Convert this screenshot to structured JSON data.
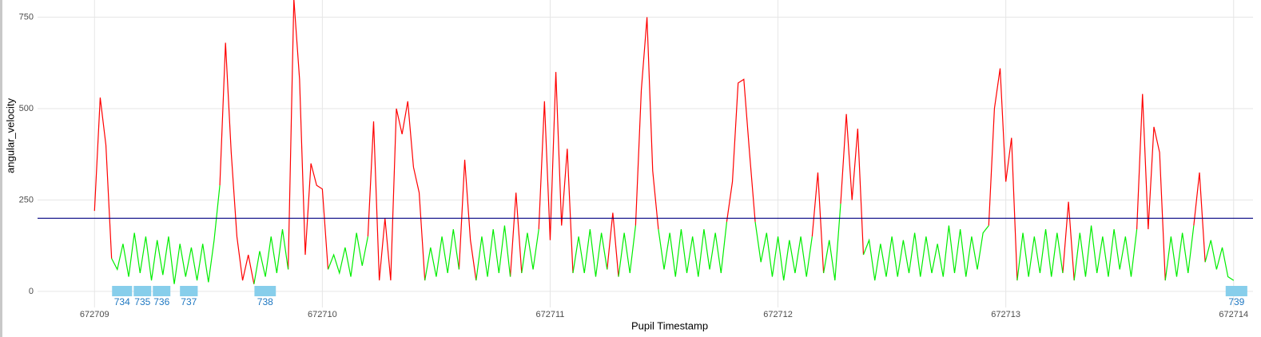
{
  "chart_data": {
    "type": "line",
    "x_label": "Pupil Timestamp",
    "y_label": "angular_velocity",
    "xlim": [
      672708.75,
      672714.085
    ],
    "ylim": [
      -44,
      797
    ],
    "xticks": [
      672709,
      672710,
      672711,
      672712,
      672713,
      672714
    ],
    "yticks": [
      0,
      250,
      500,
      750
    ],
    "grid": true,
    "threshold": {
      "value": 200,
      "color": "#000080"
    },
    "x": [
      672709,
      672709.025,
      672709.05,
      672709.075,
      672709.1,
      672709.125,
      672709.15,
      672709.175,
      672709.2,
      672709.225,
      672709.25,
      672709.275,
      672709.3,
      672709.325,
      672709.35,
      672709.375,
      672709.4,
      672709.425,
      672709.45,
      672709.475,
      672709.5,
      672709.525,
      672709.55,
      672709.575,
      672709.6,
      672709.625,
      672709.65,
      672709.675,
      672709.7,
      672709.725,
      672709.75,
      672709.775,
      672709.8,
      672709.825,
      672709.85,
      672709.875,
      672709.9,
      672709.925,
      672709.95,
      672709.975,
      672710,
      672710.025,
      672710.05,
      672710.075,
      672710.1,
      672710.125,
      672710.15,
      672710.175,
      672710.2,
      672710.225,
      672710.25,
      672710.275,
      672710.3,
      672710.325,
      672710.35,
      672710.375,
      672710.4,
      672710.425,
      672710.45,
      672710.475,
      672710.5,
      672710.525,
      672710.55,
      672710.575,
      672710.6,
      672710.625,
      672710.65,
      672710.675,
      672710.7,
      672710.725,
      672710.75,
      672710.775,
      672710.8,
      672710.825,
      672710.85,
      672710.875,
      672710.9,
      672710.925,
      672710.95,
      672710.975,
      672711,
      672711.025,
      672711.05,
      672711.075,
      672711.1,
      672711.125,
      672711.15,
      672711.175,
      672711.2,
      672711.225,
      672711.25,
      672711.275,
      672711.3,
      672711.325,
      672711.35,
      672711.375,
      672711.4,
      672711.425,
      672711.45,
      672711.475,
      672711.5,
      672711.525,
      672711.55,
      672711.575,
      672711.6,
      672711.625,
      672711.65,
      672711.675,
      672711.7,
      672711.725,
      672711.75,
      672711.775,
      672711.8,
      672711.825,
      672711.85,
      672711.875,
      672711.9,
      672711.925,
      672711.95,
      672711.975,
      672712,
      672712.025,
      672712.05,
      672712.075,
      672712.1,
      672712.125,
      672712.15,
      672712.175,
      672712.2,
      672712.225,
      672712.25,
      672712.275,
      672712.3,
      672712.325,
      672712.35,
      672712.375,
      672712.4,
      672712.425,
      672712.45,
      672712.475,
      672712.5,
      672712.525,
      672712.55,
      672712.575,
      672712.6,
      672712.625,
      672712.65,
      672712.675,
      672712.7,
      672712.725,
      672712.75,
      672712.775,
      672712.8,
      672712.825,
      672712.85,
      672712.875,
      672712.9,
      672712.925,
      672712.95,
      672712.975,
      672713,
      672713.025,
      672713.05,
      672713.075,
      672713.1,
      672713.125,
      672713.15,
      672713.175,
      672713.2,
      672713.225,
      672713.25,
      672713.275,
      672713.3,
      672713.325,
      672713.35,
      672713.375,
      672713.4,
      672713.425,
      672713.45,
      672713.475,
      672713.5,
      672713.525,
      672713.55,
      672713.575,
      672713.6,
      672713.625,
      672713.65,
      672713.675,
      672713.7,
      672713.725,
      672713.75,
      672713.775,
      672713.8,
      672713.825,
      672713.85,
      672713.875,
      672713.9,
      672713.925,
      672713.95,
      672713.975,
      672714
    ],
    "series": [
      {
        "color": "#ff0000",
        "values": [
          220,
          530,
          400,
          90,
          null,
          null,
          null,
          null,
          null,
          null,
          null,
          null,
          null,
          null,
          null,
          null,
          null,
          null,
          null,
          null,
          null,
          null,
          290,
          680,
          380,
          150,
          30,
          100,
          20,
          null,
          null,
          null,
          null,
          null,
          60,
          800,
          580,
          100,
          350,
          290,
          280,
          60,
          null,
          null,
          null,
          null,
          null,
          null,
          150,
          465,
          30,
          200,
          30,
          500,
          430,
          520,
          340,
          270,
          30,
          null,
          null,
          null,
          null,
          null,
          60,
          360,
          140,
          30,
          null,
          null,
          null,
          null,
          null,
          40,
          270,
          50,
          null,
          null,
          170,
          520,
          140,
          600,
          180,
          390,
          50,
          null,
          null,
          null,
          null,
          null,
          60,
          215,
          40,
          null,
          null,
          180,
          550,
          750,
          330,
          170,
          null,
          null,
          null,
          null,
          null,
          null,
          null,
          null,
          null,
          null,
          null,
          190,
          300,
          570,
          580,
          380,
          190,
          null,
          null,
          null,
          null,
          null,
          null,
          null,
          null,
          null,
          150,
          325,
          50,
          null,
          null,
          240,
          485,
          250,
          445,
          100,
          null,
          null,
          null,
          null,
          null,
          null,
          null,
          null,
          null,
          null,
          null,
          null,
          null,
          null,
          null,
          null,
          null,
          null,
          null,
          null,
          null,
          180,
          500,
          610,
          300,
          420,
          30,
          null,
          null,
          null,
          null,
          null,
          null,
          null,
          50,
          245,
          30,
          null,
          null,
          null,
          null,
          null,
          null,
          null,
          null,
          null,
          null,
          170,
          540,
          170,
          450,
          380,
          30,
          null,
          null,
          null,
          null,
          180,
          325,
          80,
          null,
          null,
          null,
          null,
          null
        ]
      },
      {
        "color": "#00ee00",
        "values": [
          null,
          null,
          null,
          90,
          60,
          130,
          40,
          160,
          50,
          150,
          30,
          140,
          45,
          150,
          20,
          130,
          40,
          120,
          30,
          130,
          25,
          140,
          290,
          null,
          null,
          null,
          null,
          null,
          20,
          110,
          40,
          150,
          50,
          170,
          60,
          null,
          null,
          null,
          null,
          null,
          null,
          60,
          100,
          50,
          120,
          40,
          160,
          70,
          150,
          null,
          null,
          null,
          null,
          null,
          null,
          null,
          null,
          null,
          30,
          120,
          40,
          150,
          50,
          170,
          60,
          null,
          null,
          30,
          150,
          40,
          170,
          50,
          180,
          40,
          null,
          50,
          160,
          60,
          170,
          null,
          null,
          null,
          null,
          null,
          50,
          150,
          50,
          170,
          40,
          160,
          60,
          null,
          40,
          160,
          50,
          180,
          null,
          null,
          null,
          170,
          60,
          160,
          40,
          170,
          50,
          150,
          40,
          170,
          60,
          160,
          50,
          190,
          null,
          null,
          null,
          null,
          190,
          80,
          160,
          40,
          150,
          30,
          140,
          50,
          150,
          40,
          150,
          null,
          50,
          140,
          30,
          240,
          null,
          null,
          null,
          100,
          140,
          30,
          130,
          40,
          150,
          40,
          140,
          50,
          160,
          40,
          150,
          50,
          130,
          40,
          180,
          50,
          170,
          40,
          150,
          60,
          160,
          180,
          null,
          null,
          null,
          null,
          30,
          160,
          40,
          150,
          50,
          170,
          40,
          160,
          50,
          null,
          30,
          160,
          40,
          180,
          50,
          150,
          40,
          170,
          60,
          150,
          40,
          170,
          null,
          null,
          null,
          null,
          30,
          150,
          40,
          160,
          50,
          180,
          null,
          80,
          140,
          60,
          120,
          40,
          30
        ]
      }
    ],
    "fixations": {
      "color": "#87ceeb",
      "label_color": "#1f78c1",
      "items": [
        {
          "label": "734",
          "start": 672709.077,
          "end": 672709.165
        },
        {
          "label": "735",
          "start": 672709.172,
          "end": 672709.249
        },
        {
          "label": "736",
          "start": 672709.256,
          "end": 672709.333
        },
        {
          "label": "737",
          "start": 672709.375,
          "end": 672709.453
        },
        {
          "label": "738",
          "start": 672709.702,
          "end": 672709.796
        },
        {
          "label": "739",
          "start": 672713.965,
          "end": 672714.06
        }
      ]
    }
  }
}
